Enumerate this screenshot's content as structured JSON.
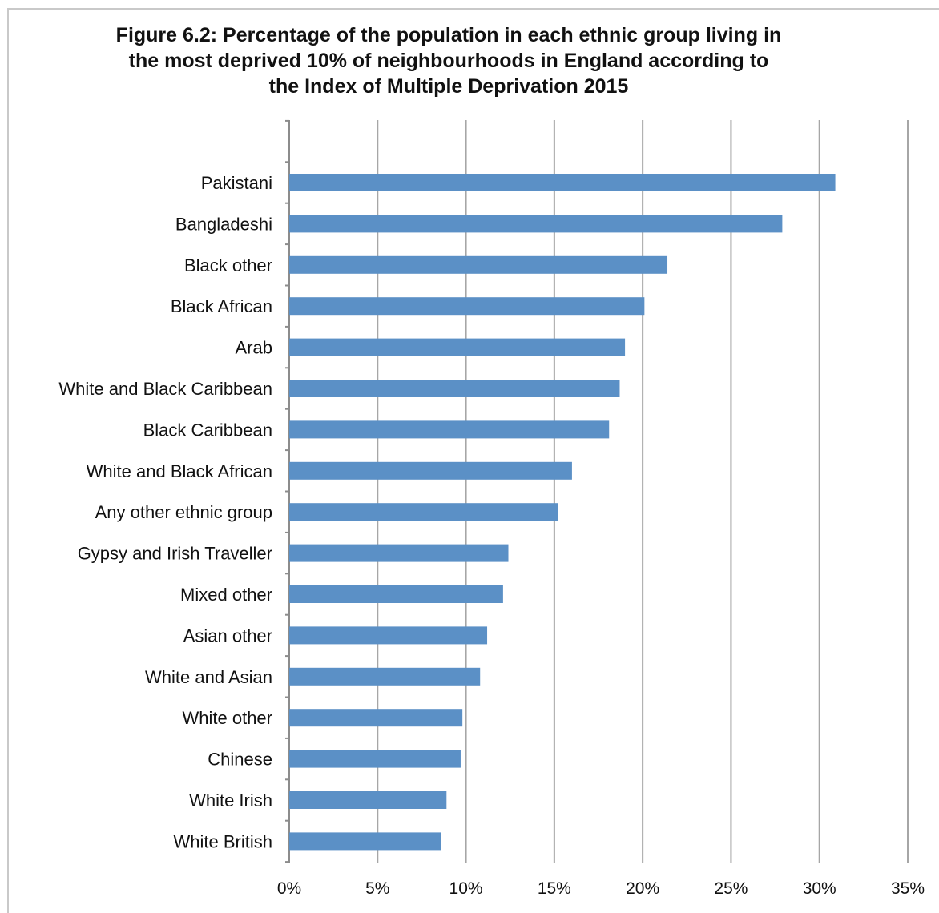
{
  "chart_data": {
    "type": "bar",
    "orientation": "horizontal",
    "title": "Figure 6.2: Percentage of the population in each ethnic group living in the most deprived 10% of neighbourhoods in England according to the Index of Multiple Deprivation 2015",
    "title_lines": [
      "Figure 6.2: Percentage of the population in each ethnic group living in",
      "the most deprived 10% of neighbourhoods in England according to",
      "the Index of Multiple Deprivation 2015"
    ],
    "categories": [
      "Pakistani",
      "Bangladeshi",
      "Black other",
      "Black African",
      "Arab",
      "White and Black Caribbean",
      "Black Caribbean",
      "White and Black African",
      "Any other ethnic group",
      "Gypsy and Irish Traveller",
      "Mixed other",
      "Asian other",
      "White and Asian",
      "White other",
      "Chinese",
      "White Irish",
      "White British"
    ],
    "values": [
      30.9,
      27.9,
      21.4,
      20.1,
      19.0,
      18.7,
      18.1,
      16.0,
      15.2,
      12.4,
      12.1,
      11.2,
      10.8,
      9.8,
      9.7,
      8.9,
      8.6
    ],
    "xlim": [
      0,
      35
    ],
    "x_ticks": [
      0,
      5,
      10,
      15,
      20,
      25,
      30,
      35
    ],
    "x_tick_labels": [
      "0%",
      "5%",
      "10%",
      "15%",
      "20%",
      "25%",
      "30%",
      "35%"
    ],
    "xlabel": "",
    "ylabel": "",
    "grid": "vertical",
    "legend": "none",
    "bar_color": "#5b90c6",
    "grid_color": "#a6a6a6",
    "axis_color": "#8c8c8c"
  }
}
